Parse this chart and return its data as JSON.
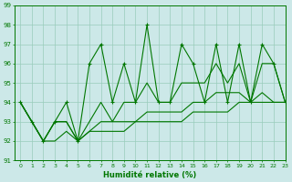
{
  "xlabel": "Humidité relative (%)",
  "ylim": [
    91,
    99
  ],
  "xlim": [
    -0.5,
    23
  ],
  "yticks": [
    91,
    92,
    93,
    94,
    95,
    96,
    97,
    98,
    99
  ],
  "xticks": [
    0,
    1,
    2,
    3,
    4,
    5,
    6,
    7,
    8,
    9,
    10,
    11,
    12,
    13,
    14,
    15,
    16,
    17,
    18,
    19,
    20,
    21,
    22,
    23
  ],
  "bg_color": "#cce8e8",
  "grid_color": "#99ccbb",
  "line_color": "#007700",
  "series_zigzag": [
    94,
    93,
    92,
    93,
    94,
    92,
    96,
    97,
    94,
    96,
    94,
    98,
    94,
    94,
    97,
    96,
    94,
    97,
    94,
    97,
    94,
    97,
    96,
    94
  ],
  "series_trend1": [
    94,
    93,
    92,
    93,
    93,
    92,
    93,
    94,
    93,
    94,
    94,
    95,
    94,
    94,
    95,
    95,
    95,
    96,
    95,
    96,
    94,
    96,
    96,
    94
  ],
  "series_trend2": [
    94,
    93,
    92,
    93,
    93,
    92,
    92.5,
    93,
    93,
    93,
    93,
    93.5,
    93.5,
    93.5,
    93.5,
    94,
    94,
    94.5,
    94.5,
    94.5,
    94,
    94.5,
    94,
    94
  ],
  "series_trend3": [
    94,
    93,
    92,
    92,
    92.5,
    92,
    92.5,
    92.5,
    92.5,
    92.5,
    93,
    93,
    93,
    93,
    93,
    93.5,
    93.5,
    93.5,
    93.5,
    94,
    94,
    94,
    94,
    94
  ]
}
